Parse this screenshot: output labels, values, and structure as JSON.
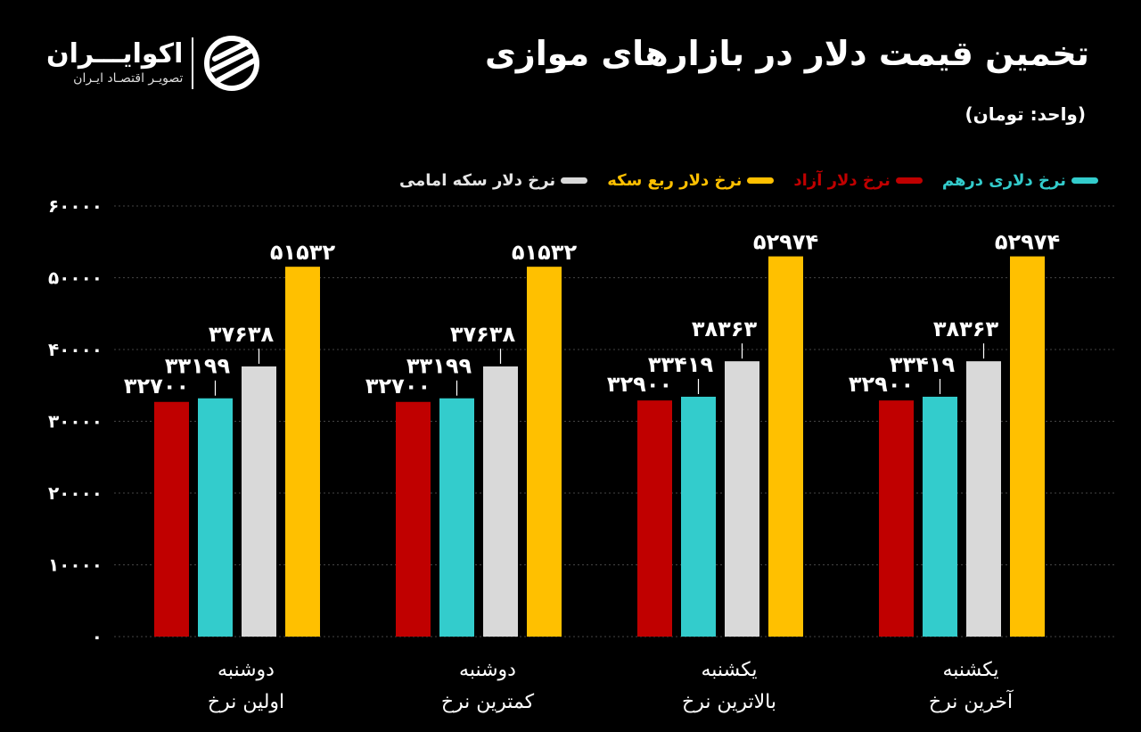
{
  "header": {
    "title": "تخمین قیمت دلار در بازارهای موازی",
    "subtitle": "(واحد: تومان)",
    "logo_name": "اکوایـــران",
    "logo_tagline": "تصویـر اقتصـاد ایـران"
  },
  "chart_data": {
    "type": "bar",
    "title": "تخمین قیمت دلار در بازارهای موازی",
    "ylabel": "",
    "xlabel": "",
    "ylim": [
      0,
      60000
    ],
    "yticks": [
      0,
      10000,
      20000,
      30000,
      40000,
      50000,
      60000
    ],
    "grid": true,
    "legend_position": "top",
    "digits": "persian",
    "categories": [
      [
        "دوشنبه",
        "اولین نرخ"
      ],
      [
        "دوشنبه",
        "کمترین نرخ"
      ],
      [
        "یکشنبه",
        "بالاترین نرخ"
      ],
      [
        "یکشنبه",
        "آخرین نرخ"
      ]
    ],
    "series": [
      {
        "name": "نرخ دلار آزاد",
        "color": "#c00000",
        "values": [
          32700,
          32700,
          32900,
          32900
        ]
      },
      {
        "name": "نرخ دلاری درهم",
        "color": "#33cccc",
        "values": [
          33199,
          33199,
          33419,
          33419
        ]
      },
      {
        "name": "نرخ دلار سکه امامی",
        "color": "#d9d9d9",
        "values": [
          37638,
          37638,
          38363,
          38363
        ]
      },
      {
        "name": "نرخ دلار ربع سکه",
        "color": "#ffc000",
        "values": [
          51532,
          51532,
          52974,
          52974
        ]
      }
    ],
    "legend_order": [
      1,
      0,
      3,
      2
    ]
  }
}
